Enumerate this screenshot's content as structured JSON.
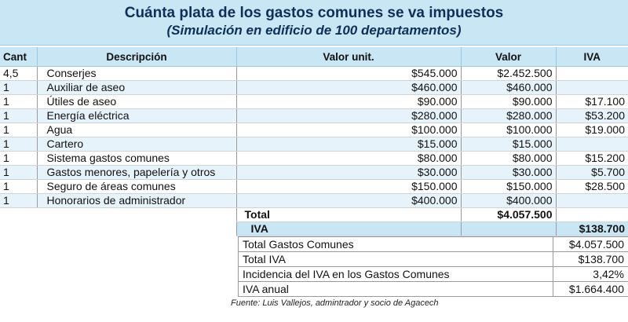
{
  "title": "Cuánta plata de los gastos comunes se va impuestos",
  "subtitle": "(Simulación en edificio de 100 departamentos)",
  "headers": {
    "cant": "Cant",
    "descripcion": "Descripción",
    "valor_unit": "Valor unit.",
    "valor": "Valor",
    "iva": "IVA"
  },
  "rows": [
    {
      "cant": "4,5",
      "descripcion": "Conserjes",
      "valor_unit": "$545.000",
      "valor": "$2.452.500",
      "iva": ""
    },
    {
      "cant": "1",
      "descripcion": "Auxiliar de aseo",
      "valor_unit": "$460.000",
      "valor": "$460.000",
      "iva": ""
    },
    {
      "cant": "1",
      "descripcion": "Útiles de aseo",
      "valor_unit": "$90.000",
      "valor": "$90.000",
      "iva": "$17.100"
    },
    {
      "cant": "1",
      "descripcion": "Energía eléctrica",
      "valor_unit": "$280.000",
      "valor": "$280.000",
      "iva": "$53.200"
    },
    {
      "cant": "1",
      "descripcion": "Agua",
      "valor_unit": "$100.000",
      "valor": "$100.000",
      "iva": "$19.000"
    },
    {
      "cant": "1",
      "descripcion": "Cartero",
      "valor_unit": "$15.000",
      "valor": "$15.000",
      "iva": ""
    },
    {
      "cant": "1",
      "descripcion": "Sistema gastos comunes",
      "valor_unit": "$80.000",
      "valor": "$80.000",
      "iva": "$15.200"
    },
    {
      "cant": "1",
      "descripcion": "Gastos menores, papelería y otros",
      "valor_unit": "$30.000",
      "valor": "$30.000",
      "iva": "$5.700"
    },
    {
      "cant": "1",
      "descripcion": "Seguro de áreas comunes",
      "valor_unit": "$150.000",
      "valor": "$150.000",
      "iva": "$28.500"
    },
    {
      "cant": "1",
      "descripcion": "Honorarios de administrador",
      "valor_unit": "$400.000",
      "valor": "$400.000",
      "iva": ""
    }
  ],
  "total": {
    "label": "Total",
    "valor": "$4.057.500"
  },
  "iva_row": {
    "label": "IVA",
    "value": "$138.700"
  },
  "summary": [
    {
      "label": "Total Gastos Comunes",
      "value": "$4.057.500"
    },
    {
      "label": "Total IVA",
      "value": "$138.700"
    },
    {
      "label": "Incidencia del IVA en los Gastos Comunes",
      "value": "3,42%"
    },
    {
      "label": "IVA anual",
      "value": "$1.664.400"
    }
  ],
  "source": "Fuente: Luis Vallejos, admintrador y socio de Agacech"
}
